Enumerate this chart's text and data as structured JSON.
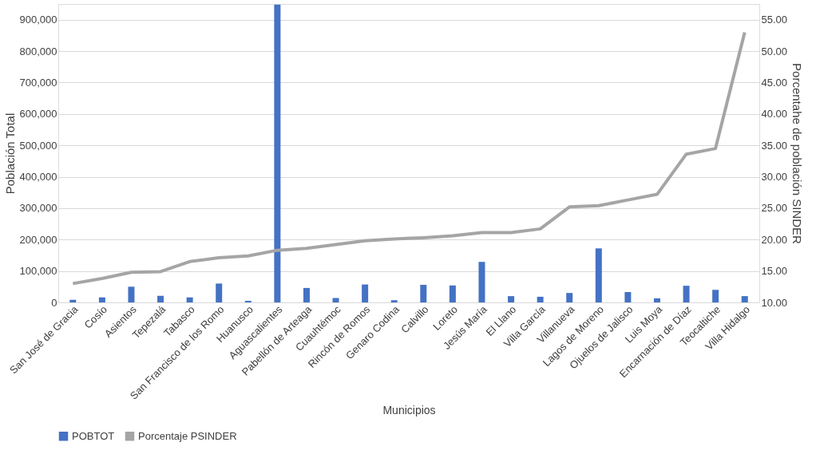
{
  "chart_data": {
    "type": "bar",
    "xlabel": "Municipios",
    "ylabel": "Población Total",
    "y2label": "Porcentahe de población SINDER",
    "categories": [
      "San José de Gracia",
      "Cosío",
      "Asientos",
      "Tepezalá",
      "Tabasco",
      "San Francisco de los Romo",
      "Huanusco",
      "Aguascalientes",
      "Pabellón de Arteaga",
      "Cuauhtémoc",
      "Rincón de Romos",
      "Genaro Codina",
      "Calvillo",
      "Loreto",
      "Jesús María",
      "El Llano",
      "Villa García",
      "Villanueva",
      "Lagos de Moreno",
      "Ojuelos de Jalisco",
      "Luis Moya",
      "Encarnación de Díaz",
      "Teocaltiche",
      "Villa Hidalgo"
    ],
    "series": [
      {
        "name": "POBTOT",
        "color": "#4472c4",
        "values": [
          8000,
          16000,
          50000,
          21000,
          16000,
          60000,
          5000,
          948000,
          46000,
          14000,
          57000,
          7000,
          56000,
          54000,
          129000,
          20000,
          18000,
          30000,
          172000,
          33000,
          13000,
          53000,
          40000,
          20000
        ]
      },
      {
        "name": "Porcentaje PSINDER",
        "type": "line",
        "axis": "y2",
        "color": "#a5a5a5",
        "values": [
          13.0,
          13.8,
          14.8,
          14.9,
          16.5,
          17.1,
          17.4,
          18.3,
          18.6,
          19.2,
          19.8,
          20.1,
          20.3,
          20.6,
          21.1,
          21.1,
          21.7,
          25.2,
          25.4,
          26.3,
          27.2,
          33.6,
          34.5,
          53.0
        ]
      }
    ],
    "ylim": [
      0,
      950000
    ],
    "yticks": [
      {
        "value": 0,
        "label": "0"
      },
      {
        "value": 100000,
        "label": "100,000"
      },
      {
        "value": 200000,
        "label": "200,000"
      },
      {
        "value": 300000,
        "label": "300,000"
      },
      {
        "value": 400000,
        "label": "400,000"
      },
      {
        "value": 500000,
        "label": "500,000"
      },
      {
        "value": 600000,
        "label": "600,000"
      },
      {
        "value": 700000,
        "label": "700,000"
      },
      {
        "value": 800000,
        "label": "800,000"
      },
      {
        "value": 900000,
        "label": "900,000"
      }
    ],
    "y2lim": [
      10,
      57.5
    ],
    "y2ticks": [
      {
        "value": 10,
        "label": "10.00"
      },
      {
        "value": 15,
        "label": "15.00"
      },
      {
        "value": 20,
        "label": "20.00"
      },
      {
        "value": 25,
        "label": "25.00"
      },
      {
        "value": 30,
        "label": "30.00"
      },
      {
        "value": 35,
        "label": "35.00"
      },
      {
        "value": 40,
        "label": "40.00"
      },
      {
        "value": 45,
        "label": "45.00"
      },
      {
        "value": 50,
        "label": "50.00"
      },
      {
        "value": 55,
        "label": "55.00"
      }
    ],
    "grid": "y",
    "legend": "bottom",
    "line_style": "solid",
    "marker": "none"
  }
}
